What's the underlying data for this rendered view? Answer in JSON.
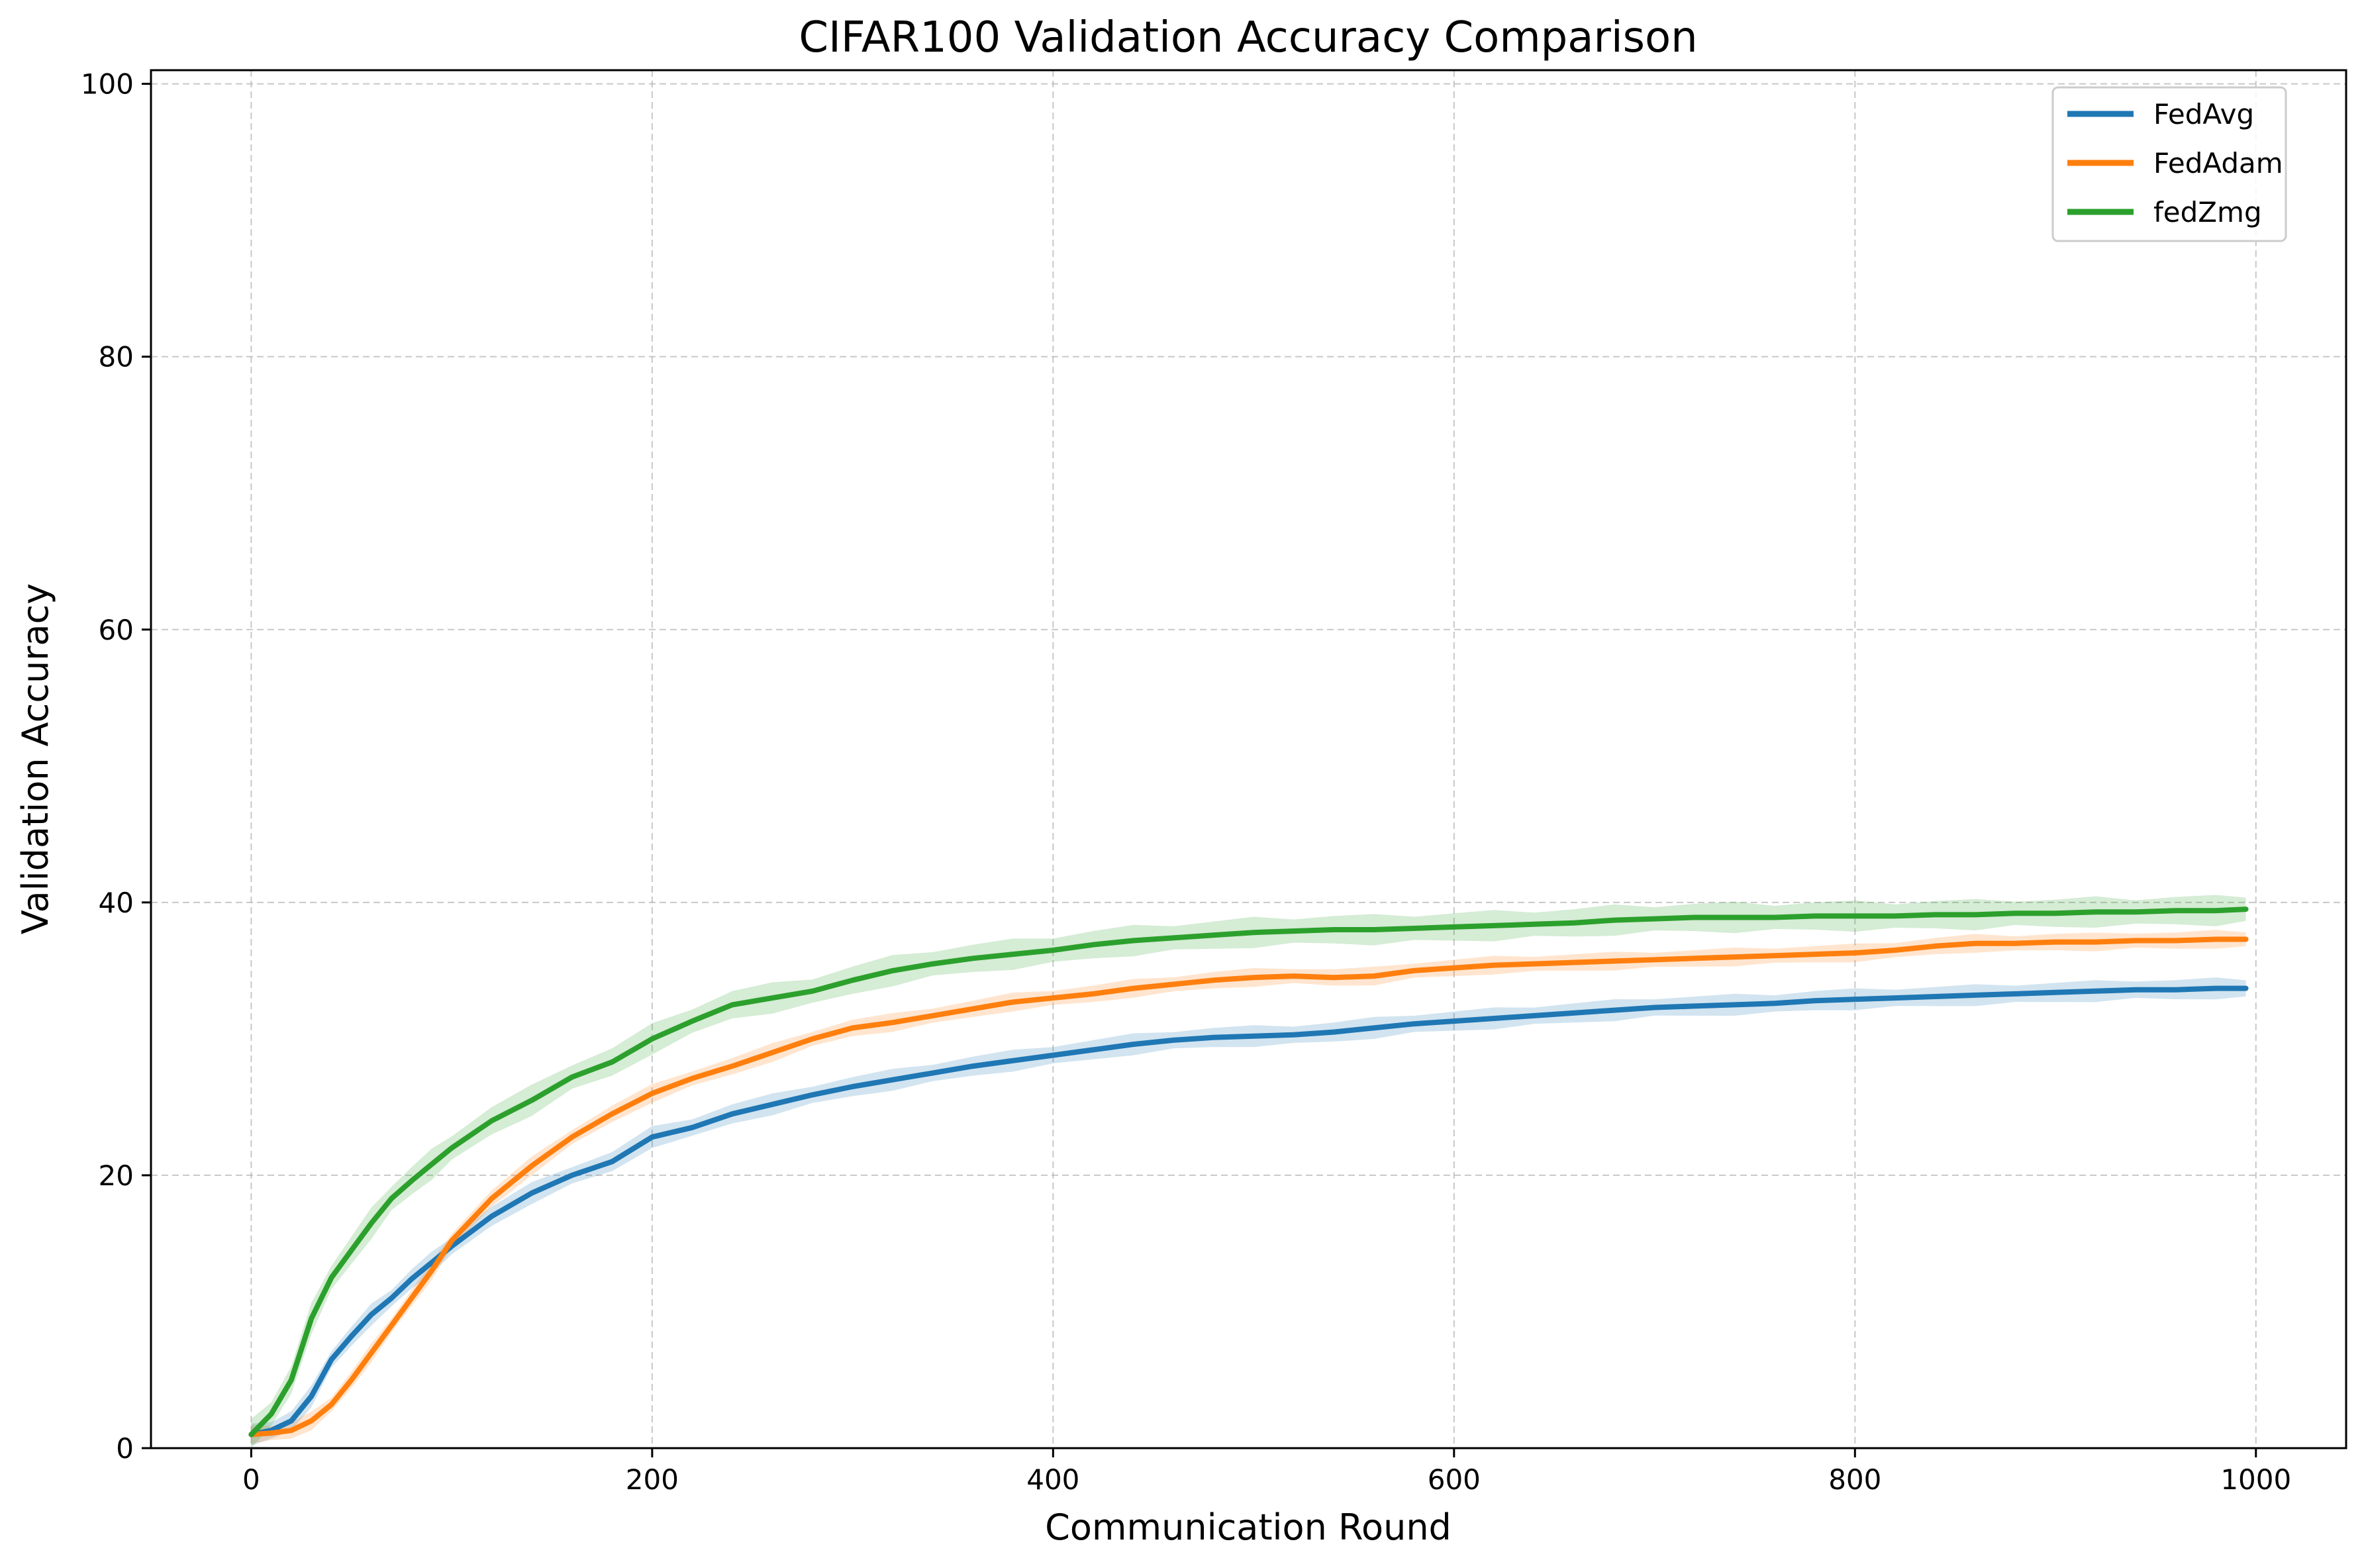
{
  "chart_data": {
    "type": "line",
    "title": "CIFAR100 Validation Accuracy Comparison",
    "xlabel": "Communication Round",
    "ylabel": "Validation Accuracy",
    "xlim": [
      -50,
      1045
    ],
    "ylim": [
      0,
      101
    ],
    "xticks": [
      0,
      200,
      400,
      600,
      800,
      1000
    ],
    "xtick_labels": [
      "0",
      "200",
      "400",
      "600",
      "800",
      "1000"
    ],
    "yticks": [
      0,
      20,
      40,
      60,
      80,
      100
    ],
    "ytick_labels": [
      "0",
      "20",
      "40",
      "60",
      "80",
      "100"
    ],
    "grid": true,
    "legend_position": "top-right",
    "x": [
      0,
      10,
      20,
      30,
      40,
      50,
      60,
      70,
      80,
      90,
      100,
      120,
      140,
      160,
      180,
      200,
      220,
      240,
      260,
      280,
      300,
      320,
      340,
      360,
      380,
      400,
      420,
      440,
      460,
      480,
      500,
      520,
      540,
      560,
      580,
      600,
      620,
      640,
      660,
      680,
      700,
      720,
      740,
      760,
      780,
      800,
      820,
      840,
      860,
      880,
      900,
      920,
      940,
      960,
      980,
      995
    ],
    "series": [
      {
        "name": "FedAvg",
        "color": "#1f77b4",
        "values": [
          1.0,
          1.3,
          2.0,
          3.8,
          6.5,
          8.2,
          9.8,
          11.0,
          12.4,
          13.6,
          14.8,
          17.0,
          18.7,
          20.0,
          21.0,
          22.8,
          23.5,
          24.5,
          25.2,
          25.9,
          26.5,
          27.0,
          27.5,
          28.0,
          28.4,
          28.8,
          29.2,
          29.6,
          29.9,
          30.1,
          30.2,
          30.3,
          30.5,
          30.8,
          31.1,
          31.3,
          31.5,
          31.7,
          31.9,
          32.1,
          32.3,
          32.4,
          32.5,
          32.6,
          32.8,
          32.9,
          33.0,
          33.1,
          33.2,
          33.3,
          33.4,
          33.5,
          33.6,
          33.6,
          33.7,
          33.7
        ],
        "band": 0.7
      },
      {
        "name": "FedAdam",
        "color": "#ff7f0e",
        "values": [
          1.0,
          1.1,
          1.3,
          2.0,
          3.2,
          5.0,
          7.0,
          9.0,
          11.0,
          13.0,
          15.2,
          18.3,
          20.7,
          22.8,
          24.5,
          26.0,
          27.1,
          28.0,
          29.0,
          30.0,
          30.8,
          31.2,
          31.7,
          32.2,
          32.7,
          33.0,
          33.3,
          33.7,
          34.0,
          34.3,
          34.5,
          34.6,
          34.5,
          34.6,
          35.0,
          35.2,
          35.4,
          35.5,
          35.6,
          35.7,
          35.8,
          35.9,
          36.0,
          36.1,
          36.2,
          36.3,
          36.5,
          36.8,
          37.0,
          37.0,
          37.1,
          37.1,
          37.2,
          37.2,
          37.3,
          37.3
        ],
        "band": 0.6
      },
      {
        "name": "fedZmg",
        "color": "#2ca02c",
        "values": [
          1.0,
          2.5,
          5.0,
          9.5,
          12.5,
          14.5,
          16.5,
          18.3,
          19.6,
          20.8,
          22.0,
          24.0,
          25.5,
          27.2,
          28.3,
          30.0,
          31.3,
          32.5,
          33.0,
          33.5,
          34.3,
          35.0,
          35.5,
          35.9,
          36.2,
          36.5,
          36.9,
          37.2,
          37.4,
          37.6,
          37.8,
          37.9,
          38.0,
          38.0,
          38.1,
          38.2,
          38.3,
          38.4,
          38.5,
          38.7,
          38.8,
          38.9,
          38.9,
          38.9,
          39.0,
          39.0,
          39.0,
          39.1,
          39.1,
          39.2,
          39.2,
          39.3,
          39.3,
          39.4,
          39.4,
          39.5
        ],
        "band": 1.0
      }
    ]
  }
}
